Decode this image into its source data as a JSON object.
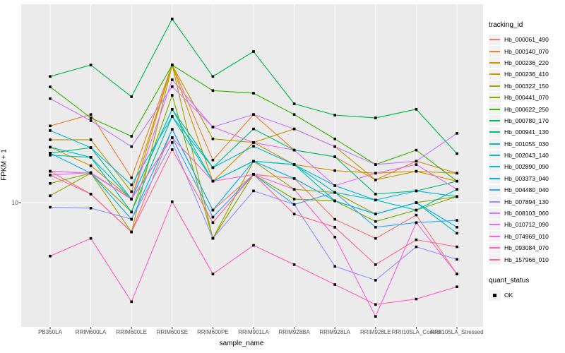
{
  "figure": {
    "xlabel": "sample_name",
    "ylabel": "FPKM + 1",
    "y_tick_label": "10",
    "legend": {
      "tracking_title": "tracking_id",
      "quant_title": "quant_status",
      "quant_ok_label": "OK"
    },
    "colors": {
      "panel_bg": "#EBEBEB",
      "grid": "#FFFFFF",
      "point": "#000000",
      "axis_text": "#4D4D4D",
      "legend_key_bg": "#F2F2F2"
    }
  },
  "chart_data": {
    "type": "line",
    "title": "",
    "xlabel": "sample_name",
    "ylabel": "FPKM + 1",
    "yscale": "log10",
    "ylim": [
      2.5,
      90
    ],
    "y_breaks": [
      10
    ],
    "grid": true,
    "legend_position": "right",
    "point_shape": "filled-black-square",
    "categories": [
      "PB350LA",
      "RRIM600LA",
      "RRIM600LE",
      "RRIM600SE",
      "RRIM600PE",
      "RRIM901LA",
      "RRIM928BA",
      "RRIM928LA",
      "RRIM928LE",
      "RRII105LA_Control",
      "RRII105LA_Stressed"
    ],
    "series": [
      {
        "name": "Hb_000061_490",
        "color": "#F8766D",
        "quant_status": "OK",
        "values": [
          14.2,
          11.0,
          7.2,
          22.7,
          9.2,
          13.7,
          13.1,
          8.3,
          6.7,
          8.7,
          4.5
        ]
      },
      {
        "name": "Hb_000140_070",
        "color": "#EA8331",
        "quant_status": "OK",
        "values": [
          23.6,
          26.8,
          13.2,
          46.6,
          16.1,
          26.8,
          18.0,
          16.7,
          12.9,
          15.9,
          13.9
        ]
      },
      {
        "name": "Hb_000236_220",
        "color": "#D89000",
        "quant_status": "OK",
        "values": [
          18.6,
          15.1,
          10.4,
          46.6,
          12.7,
          19.6,
          15.3,
          14.3,
          13.9,
          14.2,
          12.7
        ]
      },
      {
        "name": "Hb_000236_410",
        "color": "#C09B00",
        "quant_status": "OK",
        "values": [
          20.2,
          20.2,
          11.3,
          46.6,
          20.4,
          19.6,
          22.8,
          18.7,
          12.9,
          14.2,
          13.9
        ]
      },
      {
        "name": "Hb_000322_150",
        "color": "#A3A500",
        "quant_status": "OK",
        "values": [
          10.8,
          13.9,
          7.2,
          46.6,
          6.7,
          15.9,
          11.6,
          11.2,
          8.8,
          10.0,
          10.7
        ]
      },
      {
        "name": "Hb_000441_070",
        "color": "#7CAE00",
        "quant_status": "OK",
        "values": [
          12.4,
          13.9,
          9.0,
          33.2,
          6.7,
          13.7,
          10.4,
          10.2,
          8.1,
          9.2,
          10.7
        ]
      },
      {
        "name": "Hb_000622_250",
        "color": "#39B600",
        "quant_status": "OK",
        "values": [
          36.5,
          25.8,
          21.0,
          46.6,
          35.0,
          34.0,
          26.8,
          20.4,
          15.3,
          18.0,
          12.7
        ]
      },
      {
        "name": "Hb_000780_170",
        "color": "#00BB4E",
        "quant_status": "OK",
        "values": [
          41.0,
          46.6,
          32.7,
          78.0,
          41.0,
          54.2,
          30.2,
          26.6,
          25.8,
          28.4,
          17.3
        ]
      },
      {
        "name": "Hb_000941_130",
        "color": "#00BF7D",
        "quant_status": "OK",
        "values": [
          17.4,
          18.5,
          10.4,
          28.4,
          14.8,
          22.8,
          18.0,
          16.7,
          11.0,
          11.4,
          12.7
        ]
      },
      {
        "name": "Hb_001055_030",
        "color": "#00C1A3",
        "quant_status": "OK",
        "values": [
          17.0,
          16.6,
          9.0,
          26.2,
          12.7,
          15.9,
          15.3,
          10.2,
          8.8,
          10.0,
          7.1
        ]
      },
      {
        "name": "Hb_002043_140",
        "color": "#00BFC4",
        "quant_status": "OK",
        "values": [
          18.6,
          16.6,
          10.4,
          28.4,
          12.7,
          15.9,
          15.3,
          11.2,
          10.3,
          9.2,
          11.6
        ]
      },
      {
        "name": "Hb_002890_090",
        "color": "#00BAE0",
        "quant_status": "OK",
        "values": [
          22.4,
          18.5,
          12.2,
          26.2,
          14.8,
          18.8,
          15.3,
          12.1,
          10.3,
          11.4,
          10.7
        ]
      },
      {
        "name": "Hb_003373_040",
        "color": "#00B0F6",
        "quant_status": "OK",
        "values": [
          17.4,
          13.9,
          8.3,
          22.7,
          9.2,
          15.9,
          13.1,
          10.2,
          8.8,
          10.0,
          7.6
        ]
      },
      {
        "name": "Hb_004480_040",
        "color": "#35A2FF",
        "quant_status": "OK",
        "values": [
          14.2,
          13.9,
          10.4,
          20.7,
          8.5,
          13.7,
          9.8,
          11.2,
          7.6,
          8.0,
          8.2
        ]
      },
      {
        "name": "Hb_007894_130",
        "color": "#9590FF",
        "quant_status": "OK",
        "values": [
          9.5,
          9.4,
          8.3,
          19.6,
          6.7,
          11.4,
          9.8,
          4.9,
          4.2,
          6.1,
          5.3
        ]
      },
      {
        "name": "Hb_008103_060",
        "color": "#C77CFF",
        "quant_status": "OK",
        "values": [
          32.0,
          25.0,
          18.7,
          36.6,
          23.3,
          26.8,
          22.8,
          18.7,
          15.3,
          15.9,
          21.7
        ]
      },
      {
        "name": "Hb_010712_090",
        "color": "#E76BF3",
        "quant_status": "OK",
        "values": [
          13.6,
          14.0,
          10.4,
          39.5,
          23.3,
          19.6,
          18.0,
          12.1,
          13.9,
          15.3,
          11.6
        ]
      },
      {
        "name": "Hb_074969_010",
        "color": "#FA62DB",
        "quant_status": "OK",
        "values": [
          14.2,
          13.9,
          10.4,
          20.7,
          12.7,
          13.7,
          11.6,
          6.8,
          2.8,
          8.0,
          4.5
        ]
      },
      {
        "name": "Hb_093084_070",
        "color": "#FF62BC",
        "quant_status": "OK",
        "values": [
          5.5,
          6.7,
          3.3,
          10.1,
          4.5,
          6.2,
          5.0,
          4.0,
          3.2,
          3.4,
          3.9
        ]
      },
      {
        "name": "Hb_157966_010",
        "color": "#FF6A98",
        "quant_status": "OK",
        "values": [
          13.6,
          11.0,
          7.2,
          18.1,
          8.0,
          13.7,
          8.8,
          7.6,
          5.0,
          6.6,
          6.1
        ]
      }
    ]
  }
}
